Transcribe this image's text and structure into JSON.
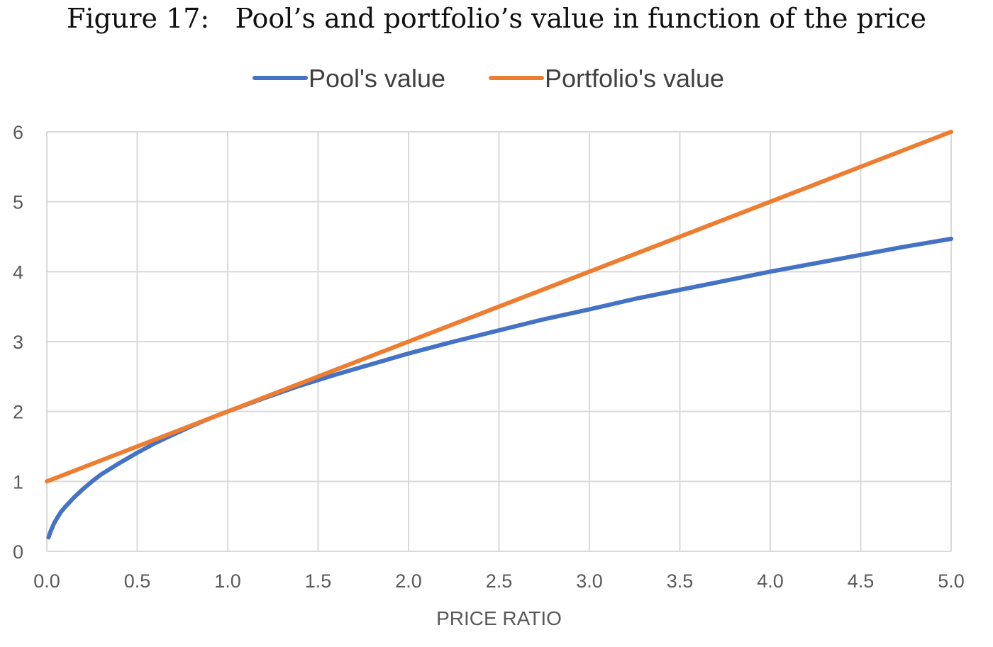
{
  "figure": {
    "caption": "Figure 17:   Pool’s and portfolio’s value in function of the price"
  },
  "chart_data": {
    "type": "line",
    "title": "",
    "xlabel": "PRICE RATIO",
    "ylabel": "",
    "xlim": [
      0,
      5
    ],
    "ylim": [
      0,
      6
    ],
    "xticks": [
      "0.0",
      "0.5",
      "1.0",
      "1.5",
      "2.0",
      "2.5",
      "3.0",
      "3.5",
      "4.0",
      "4.5",
      "5.0"
    ],
    "yticks": [
      "0",
      "1",
      "2",
      "3",
      "4",
      "5",
      "6"
    ],
    "grid": true,
    "legend_position": "top",
    "series": [
      {
        "name": "Pool's value",
        "color": "#4472C4",
        "x": [
          0.01,
          0.02,
          0.04,
          0.06,
          0.08,
          0.1,
          0.15,
          0.2,
          0.25,
          0.3,
          0.4,
          0.5,
          0.6,
          0.7,
          0.8,
          0.9,
          1.0,
          1.2,
          1.4,
          1.6,
          1.8,
          2.0,
          2.25,
          2.5,
          2.75,
          3.0,
          3.25,
          3.5,
          3.75,
          4.0,
          4.25,
          4.5,
          4.75,
          5.0
        ],
        "y": [
          0.2,
          0.28,
          0.4,
          0.49,
          0.57,
          0.63,
          0.77,
          0.89,
          1.0,
          1.1,
          1.26,
          1.41,
          1.55,
          1.67,
          1.79,
          1.9,
          2.0,
          2.19,
          2.37,
          2.53,
          2.68,
          2.83,
          3.0,
          3.16,
          3.32,
          3.46,
          3.61,
          3.74,
          3.87,
          4.0,
          4.12,
          4.24,
          4.36,
          4.47
        ]
      },
      {
        "name": "Portfolio's value",
        "color": "#ED7D31",
        "x": [
          0.0,
          5.0
        ],
        "y": [
          1.0,
          6.0
        ]
      }
    ]
  }
}
